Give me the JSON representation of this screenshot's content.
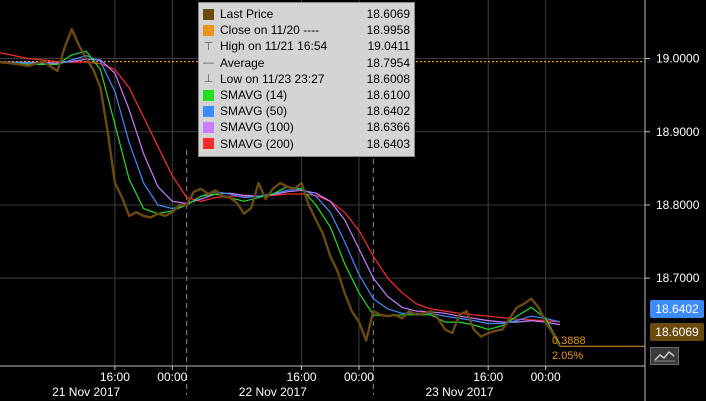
{
  "colors": {
    "last_price": "#6b4a10",
    "close": "#e8951a",
    "sma14": "#22dd22",
    "sma50": "#3c8cff",
    "sma100": "#c77dff",
    "sma200": "#ff2a2a",
    "grid": "#3d3d3d",
    "background": "#000000"
  },
  "legend": {
    "items": [
      {
        "icon": "brown-square-icon",
        "label": "Last Price",
        "value": "18.6069"
      },
      {
        "icon": "orange-square-icon",
        "label": "Close on 11/20 ----",
        "value": "18.9958"
      },
      {
        "icon": "high-marker-icon",
        "label": "High on 11/21 16:54",
        "value": "19.0411"
      },
      {
        "icon": "average-marker-icon",
        "label": "Average",
        "value": "18.7954"
      },
      {
        "icon": "low-marker-icon",
        "label": "Low on 11/23 23:27",
        "value": "18.6008"
      },
      {
        "icon": "green-square-icon",
        "label": "SMAVG (14)",
        "value": "18.6100"
      },
      {
        "icon": "blue-square-icon",
        "label": "SMAVG (50)",
        "value": "18.6402"
      },
      {
        "icon": "violet-square-icon",
        "label": "SMAVG (100)",
        "value": "18.6366"
      },
      {
        "icon": "red-square-icon",
        "label": "SMAVG (200)",
        "value": "18.6403"
      }
    ]
  },
  "tags": {
    "sma50": "18.6402",
    "last": "18.6069"
  },
  "change": {
    "abs": "0.3888",
    "pct": "2.05%"
  },
  "chart_data": {
    "type": "line",
    "ylim": [
      18.58,
      19.08
    ],
    "yticks": [
      "19.0000",
      "18.9000",
      "18.8000",
      "18.7000"
    ],
    "ytick_values": [
      19.0,
      18.9,
      18.8,
      18.7
    ],
    "xlim": [
      0,
      78
    ],
    "x_ticks": [
      {
        "x": 16,
        "label": "16:00"
      },
      {
        "x": 24,
        "label": "00:00"
      },
      {
        "x": 42,
        "label": "16:00"
      },
      {
        "x": 50,
        "label": "00:00"
      },
      {
        "x": 68,
        "label": "16:00"
      },
      {
        "x": 76,
        "label": "00:00"
      }
    ],
    "day_labels": [
      {
        "x": 12,
        "label": "21 Nov 2017"
      },
      {
        "x": 38,
        "label": "22 Nov 2017"
      },
      {
        "x": 64,
        "label": "23 Nov 2017"
      }
    ],
    "day_separators": [
      26,
      52
    ],
    "reference_line": {
      "name": "Close on 11/20",
      "value": 18.9958
    },
    "series": [
      {
        "name": "Last Price",
        "x": [
          0,
          2,
          4,
          6,
          8,
          9,
          10,
          11,
          12,
          13,
          14,
          15,
          16,
          17,
          18,
          19,
          20,
          21,
          22,
          23,
          24,
          25,
          26,
          27,
          28,
          29,
          30,
          31,
          32,
          33,
          34,
          35,
          36,
          37,
          38,
          39,
          40,
          41,
          42,
          43,
          44,
          45,
          46,
          47,
          48,
          49,
          50,
          51,
          52,
          53,
          54,
          55,
          56,
          57,
          58,
          59,
          60,
          61,
          62,
          63,
          64,
          65,
          66,
          67,
          68,
          69,
          70,
          71,
          72,
          73,
          74,
          75,
          76,
          77,
          78
        ],
        "y": [
          18.995,
          18.993,
          18.99,
          18.996,
          18.983,
          19.015,
          19.04,
          19.018,
          19.0,
          18.985,
          18.96,
          18.9,
          18.83,
          18.81,
          18.785,
          18.79,
          18.785,
          18.783,
          18.788,
          18.785,
          18.79,
          18.8,
          18.8,
          18.818,
          18.822,
          18.815,
          18.82,
          18.812,
          18.81,
          18.803,
          18.788,
          18.796,
          18.83,
          18.808,
          18.822,
          18.83,
          18.825,
          18.822,
          18.83,
          18.8,
          18.78,
          18.76,
          18.73,
          18.71,
          18.68,
          18.655,
          18.64,
          18.615,
          18.655,
          18.65,
          18.648,
          18.65,
          18.645,
          18.655,
          18.65,
          18.652,
          18.655,
          18.645,
          18.63,
          18.625,
          18.65,
          18.655,
          18.63,
          18.62,
          18.625,
          18.628,
          18.63,
          18.645,
          18.66,
          18.665,
          18.672,
          18.66,
          18.64,
          18.625,
          18.6069
        ]
      },
      {
        "name": "SMAVG (14)",
        "x": [
          0,
          4,
          8,
          10,
          12,
          14,
          16,
          18,
          20,
          22,
          24,
          26,
          28,
          30,
          32,
          34,
          36,
          38,
          40,
          42,
          44,
          46,
          48,
          50,
          52,
          54,
          56,
          58,
          60,
          62,
          64,
          66,
          68,
          70,
          72,
          74,
          76,
          78
        ],
        "y": [
          18.995,
          18.992,
          18.992,
          19.005,
          19.01,
          18.985,
          18.91,
          18.835,
          18.795,
          18.788,
          18.792,
          18.8,
          18.812,
          18.815,
          18.81,
          18.805,
          18.81,
          18.815,
          18.825,
          18.822,
          18.8,
          18.77,
          18.72,
          18.68,
          18.65,
          18.648,
          18.65,
          18.65,
          18.65,
          18.64,
          18.64,
          18.636,
          18.63,
          18.635,
          18.648,
          18.66,
          18.645,
          18.61
        ]
      },
      {
        "name": "SMAVG (50)",
        "x": [
          0,
          4,
          8,
          10,
          12,
          14,
          16,
          18,
          20,
          22,
          24,
          26,
          28,
          30,
          32,
          34,
          36,
          38,
          40,
          42,
          44,
          46,
          48,
          50,
          52,
          54,
          56,
          58,
          60,
          62,
          64,
          66,
          68,
          70,
          72,
          74,
          76,
          78
        ],
        "y": [
          18.995,
          18.994,
          18.992,
          18.998,
          19.004,
          18.996,
          18.955,
          18.885,
          18.83,
          18.8,
          18.795,
          18.8,
          18.812,
          18.818,
          18.815,
          18.81,
          18.812,
          18.815,
          18.82,
          18.822,
          18.812,
          18.79,
          18.75,
          18.705,
          18.672,
          18.658,
          18.652,
          18.652,
          18.652,
          18.648,
          18.645,
          18.642,
          18.638,
          18.638,
          18.642,
          18.648,
          18.645,
          18.6402
        ]
      },
      {
        "name": "SMAVG (100)",
        "x": [
          0,
          4,
          8,
          10,
          12,
          14,
          16,
          18,
          20,
          22,
          24,
          26,
          28,
          30,
          32,
          34,
          36,
          38,
          40,
          42,
          44,
          46,
          48,
          50,
          52,
          54,
          56,
          58,
          60,
          62,
          64,
          66,
          68,
          70,
          72,
          74,
          76,
          78
        ],
        "y": [
          18.995,
          18.995,
          18.994,
          18.996,
          18.999,
          18.998,
          18.98,
          18.93,
          18.87,
          18.825,
          18.805,
          18.802,
          18.808,
          18.815,
          18.816,
          18.813,
          18.812,
          18.814,
          18.818,
          18.82,
          18.816,
          18.805,
          18.78,
          18.74,
          18.7,
          18.675,
          18.66,
          18.655,
          18.654,
          18.652,
          18.648,
          18.645,
          18.642,
          18.64,
          18.64,
          18.642,
          18.64,
          18.6366
        ]
      },
      {
        "name": "SMAVG (200)",
        "x": [
          0,
          4,
          8,
          10,
          12,
          14,
          16,
          18,
          20,
          22,
          24,
          26,
          28,
          30,
          32,
          34,
          36,
          38,
          40,
          42,
          44,
          46,
          48,
          50,
          52,
          54,
          56,
          58,
          60,
          62,
          64,
          66,
          68,
          70,
          72,
          74,
          76,
          78
        ],
        "y": [
          19.008,
          19.0,
          18.996,
          18.995,
          18.995,
          18.993,
          18.985,
          18.96,
          18.92,
          18.88,
          18.84,
          18.81,
          18.805,
          18.81,
          18.812,
          18.812,
          18.812,
          18.813,
          18.815,
          18.815,
          18.813,
          18.805,
          18.79,
          18.765,
          18.73,
          18.7,
          18.68,
          18.665,
          18.658,
          18.655,
          18.652,
          18.65,
          18.648,
          18.646,
          18.644,
          18.643,
          18.642,
          18.6403
        ]
      }
    ]
  }
}
